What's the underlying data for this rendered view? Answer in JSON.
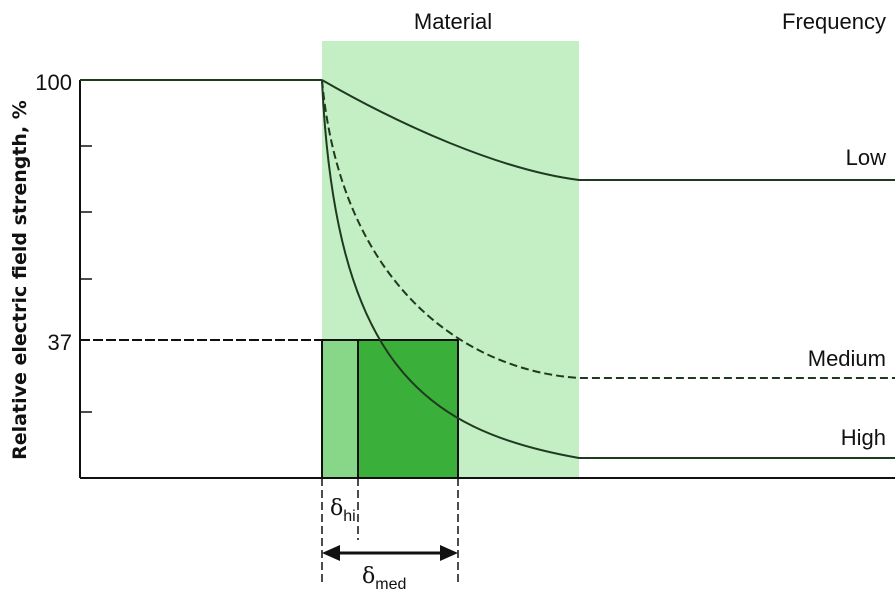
{
  "diagram": {
    "title_material": "Material",
    "title_frequency": "Frequency",
    "y_axis_label": "Relative electric field strength, %",
    "y_tick_100": "100",
    "y_tick_37": "37",
    "curves": {
      "low": "Low",
      "medium": "Medium",
      "high": "High"
    },
    "delta_hi": {
      "symbol": "δ",
      "subscript": "hi"
    },
    "delta_med": {
      "symbol": "δ",
      "subscript": "med"
    },
    "colors": {
      "material_band": "#c4eec4",
      "delta_hi_fill": "#88d688",
      "delta_med_fill": "#3aaf3a",
      "curve_stroke": "#1f3a1f",
      "axis_stroke": "#111111"
    }
  }
}
